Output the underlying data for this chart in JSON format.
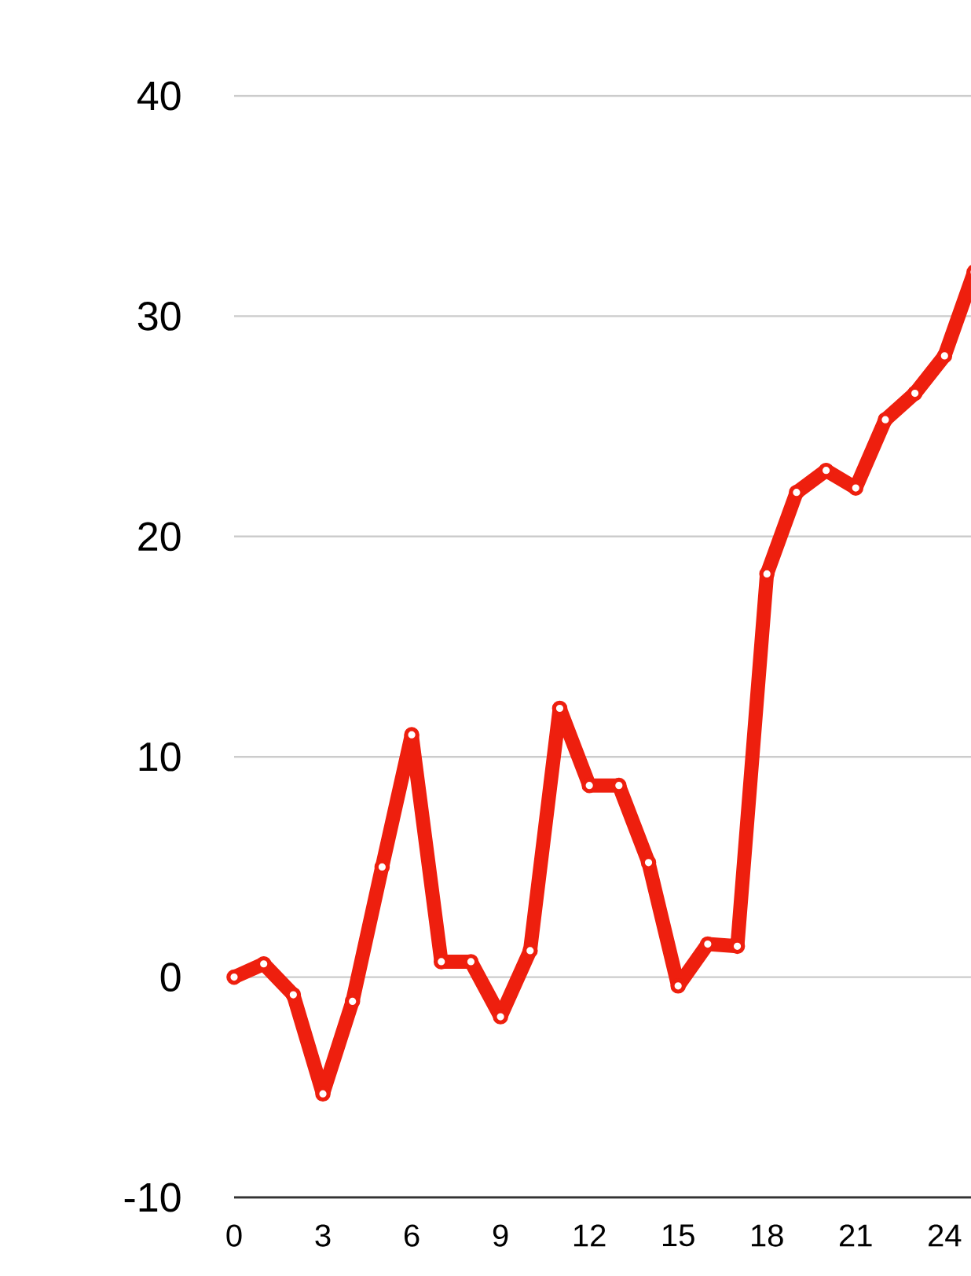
{
  "chart_data": {
    "type": "line",
    "x": [
      0,
      1,
      2,
      3,
      4,
      5,
      6,
      7,
      8,
      9,
      10,
      11,
      12,
      13,
      14,
      15,
      16,
      17,
      18,
      19,
      20,
      21,
      22,
      23,
      24,
      25
    ],
    "series": [
      {
        "color": "#ee1f0e",
        "values": [
          0,
          0.6,
          -0.8,
          -5.3,
          -1.1,
          5.0,
          11.0,
          0.7,
          0.7,
          -1.8,
          1.2,
          12.2,
          8.7,
          8.7,
          5.2,
          -0.4,
          1.5,
          1.4,
          18.3,
          22.0,
          23.0,
          22.2,
          25.3,
          26.5,
          28.2,
          32.0
        ]
      }
    ],
    "xlim": [
      0,
      25
    ],
    "ylim": [
      -10,
      40
    ],
    "xticks": [
      0,
      3,
      6,
      9,
      12,
      15,
      18,
      21,
      24
    ],
    "yticks": [
      -10,
      0,
      10,
      20,
      30,
      40
    ],
    "grid": "y",
    "marker": "circle",
    "line_style": "solid"
  }
}
